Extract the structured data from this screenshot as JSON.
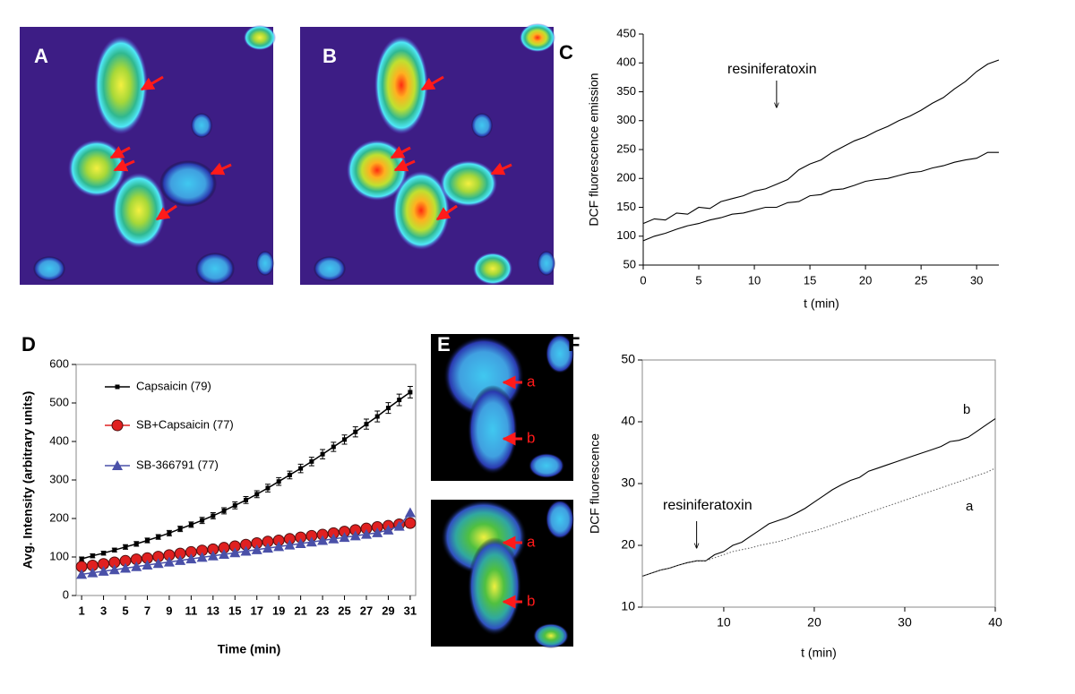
{
  "panel_labels": [
    "A",
    "B",
    "C",
    "D",
    "E",
    "F"
  ],
  "image_labels": [
    "a",
    "b",
    "a",
    "b"
  ],
  "chart_data": [
    {
      "type": "line",
      "frame": "axes",
      "x_label": "t (min)",
      "y_label": "DCF fluorescence emission",
      "x": [
        0,
        1,
        2,
        3,
        4,
        5,
        6,
        7,
        8,
        9,
        10,
        11,
        12,
        13,
        14,
        15,
        16,
        17,
        18,
        19,
        20,
        21,
        22,
        23,
        24,
        25,
        26,
        27,
        28,
        29,
        30,
        31,
        32
      ],
      "series": [
        {
          "color": "#000000",
          "values": [
            122,
            130,
            128,
            140,
            138,
            150,
            148,
            160,
            165,
            170,
            178,
            182,
            190,
            198,
            215,
            225,
            232,
            245,
            255,
            265,
            272,
            282,
            290,
            300,
            308,
            318,
            330,
            340,
            355,
            368,
            385,
            398,
            405
          ]
        },
        {
          "color": "#000000",
          "values": [
            92,
            100,
            105,
            112,
            118,
            122,
            128,
            132,
            138,
            140,
            145,
            150,
            150,
            158,
            160,
            170,
            172,
            180,
            182,
            188,
            195,
            198,
            200,
            205,
            210,
            212,
            218,
            222,
            228,
            232,
            235,
            245,
            245
          ]
        }
      ],
      "xlim": [
        0,
        32
      ],
      "xticks": [
        0,
        5,
        10,
        15,
        20,
        25,
        30
      ],
      "ylim": [
        50,
        450
      ],
      "yticks": [
        50,
        100,
        150,
        200,
        250,
        300,
        350,
        400,
        450
      ],
      "annotations": [
        {
          "text": "resiniferatoxin",
          "x": 12
        }
      ]
    },
    {
      "type": "line",
      "frame": "box",
      "legend": "upper-left",
      "x_label": "Time (min)",
      "y_label": "Avg. Intensity (arbitrary units)",
      "x": [
        1,
        2,
        3,
        4,
        5,
        6,
        7,
        8,
        9,
        10,
        11,
        12,
        13,
        14,
        15,
        16,
        17,
        18,
        19,
        20,
        21,
        22,
        23,
        24,
        25,
        26,
        27,
        28,
        29,
        30,
        31
      ],
      "series": [
        {
          "name": "Capsaicin (79)",
          "color": "#000000",
          "marker": "square",
          "values": [
            95,
            103,
            110,
            118,
            126,
            134,
            143,
            152,
            162,
            173,
            184,
            195,
            207,
            220,
            234,
            248,
            263,
            279,
            296,
            313,
            330,
            348,
            367,
            386,
            405,
            425,
            445,
            465,
            487,
            508,
            528
          ],
          "errors": [
            5,
            5,
            5,
            5,
            6,
            6,
            6,
            6,
            7,
            7,
            7,
            8,
            8,
            8,
            9,
            9,
            9,
            10,
            10,
            10,
            11,
            11,
            12,
            12,
            12,
            13,
            13,
            14,
            14,
            15,
            15
          ]
        },
        {
          "name": "SB+Capsaicin (77)",
          "color": "#e02020",
          "marker": "circle",
          "values": [
            75,
            78,
            82,
            86,
            90,
            94,
            97,
            101,
            105,
            109,
            113,
            117,
            120,
            124,
            128,
            132,
            136,
            140,
            143,
            147,
            151,
            155,
            158,
            162,
            166,
            170,
            174,
            178,
            181,
            185,
            188
          ]
        },
        {
          "name": "SB-366791 (77)",
          "color": "#4a50a8",
          "marker": "triangle",
          "values": [
            55,
            59,
            63,
            67,
            71,
            75,
            79,
            83,
            87,
            91,
            95,
            99,
            103,
            107,
            111,
            115,
            119,
            123,
            127,
            131,
            135,
            139,
            143,
            147,
            151,
            155,
            159,
            163,
            170,
            180,
            215
          ]
        }
      ],
      "xlim": [
        0.5,
        31.5
      ],
      "xticks": [
        1,
        3,
        5,
        7,
        9,
        11,
        13,
        15,
        17,
        19,
        21,
        23,
        25,
        27,
        29,
        31
      ],
      "ylim": [
        0,
        600
      ],
      "yticks": [
        0,
        100,
        200,
        300,
        400,
        500,
        600
      ]
    },
    {
      "type": "line",
      "frame": "box",
      "x_label": "t (min)",
      "y_label": "DCF fluorescence",
      "x": [
        1,
        2,
        3,
        4,
        5,
        6,
        7,
        8,
        9,
        10,
        11,
        12,
        13,
        14,
        15,
        16,
        17,
        18,
        19,
        20,
        21,
        22,
        23,
        24,
        25,
        26,
        27,
        28,
        29,
        30,
        31,
        32,
        33,
        34,
        35,
        36,
        37,
        38,
        39,
        40
      ],
      "series": [
        {
          "name": "b",
          "color": "#000000",
          "style": "solid",
          "values": [
            15,
            15.5,
            16,
            16.3,
            16.8,
            17.2,
            17.5,
            17.5,
            18.5,
            19,
            20,
            20.5,
            21.5,
            22.5,
            23.5,
            24,
            24.5,
            25.2,
            26,
            27,
            28,
            29,
            29.8,
            30.5,
            31,
            32,
            32.5,
            33,
            33.5,
            34,
            34.5,
            35,
            35.5,
            36,
            36.8,
            37,
            37.5,
            38.5,
            39.5,
            40.5
          ]
        },
        {
          "name": "a",
          "color": "#666666",
          "style": "dotted",
          "values": [
            15,
            15.5,
            16,
            16.3,
            16.8,
            17.2,
            17.5,
            17.5,
            18,
            18.5,
            19,
            19.3,
            19.6,
            20,
            20.3,
            20.6,
            21,
            21.5,
            22,
            22.3,
            22.8,
            23.3,
            23.8,
            24.3,
            24.8,
            25.3,
            25.8,
            26.3,
            26.8,
            27.3,
            27.8,
            28.3,
            28.8,
            29.3,
            29.8,
            30.3,
            30.8,
            31.3,
            31.8,
            32.5
          ]
        }
      ],
      "xlim": [
        1,
        40
      ],
      "xticks": [
        10,
        20,
        30,
        40
      ],
      "ylim": [
        10,
        50
      ],
      "yticks": [
        10,
        20,
        30,
        40,
        50
      ],
      "annotations": [
        {
          "text": "resiniferatoxin",
          "x": 7
        }
      ]
    }
  ]
}
